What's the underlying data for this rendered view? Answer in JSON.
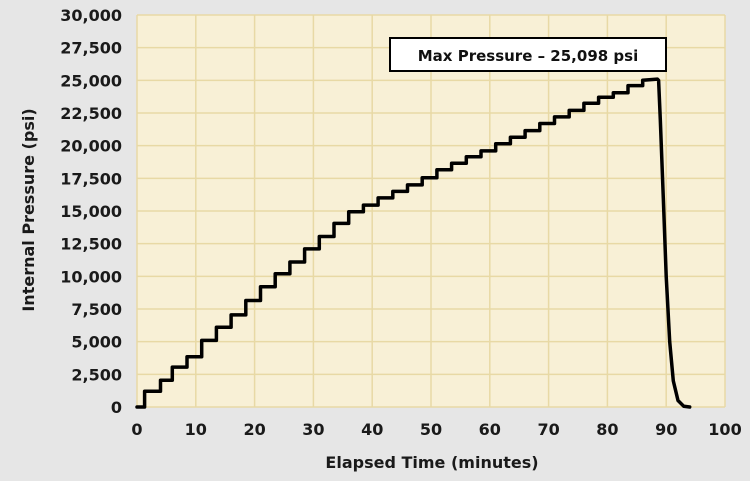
{
  "chart_data": {
    "type": "line",
    "title": "",
    "xlabel": "Elapsed Time (minutes)",
    "ylabel": "Internal Pressure (psi)",
    "xlim": [
      0,
      100
    ],
    "ylim": [
      0,
      30000
    ],
    "grid": true,
    "x_ticks": [
      0,
      10,
      20,
      30,
      40,
      50,
      60,
      70,
      80,
      90,
      100
    ],
    "x_tick_labels": [
      "0",
      "10",
      "20",
      "30",
      "40",
      "50",
      "60",
      "70",
      "80",
      "90",
      "100"
    ],
    "y_ticks": [
      0,
      2500,
      5000,
      7500,
      10000,
      12500,
      15000,
      17500,
      20000,
      22500,
      25000,
      27500,
      30000
    ],
    "y_tick_labels": [
      "0",
      "2,500",
      "5,000",
      "7,500",
      "10,000",
      "12,500",
      "15,000",
      "17,500",
      "20,000",
      "22,500",
      "25,000",
      "27,500",
      "30,000"
    ],
    "annotation": "Max Pressure – 25,098 psi",
    "colors": {
      "plot_bg": "#f8f0d6",
      "page_bg": "#e6e6e6",
      "grid": "#e8d9a5",
      "line": "#000000"
    },
    "series": [
      {
        "x": [
          0,
          1.3,
          1.3,
          4,
          4,
          6,
          6,
          8.5,
          8.5,
          11,
          11,
          13.5,
          13.5,
          16,
          16,
          18.5,
          18.5,
          21,
          21,
          23.5,
          23.5,
          26,
          26,
          28.5,
          28.5,
          31,
          31,
          33.5,
          33.5,
          36,
          36,
          38.5,
          38.5,
          41,
          41,
          43.5,
          43.5,
          46,
          46,
          48.5,
          48.5,
          51,
          51,
          53.5,
          53.5,
          56,
          56,
          58.5,
          58.5,
          61,
          61,
          63.5,
          63.5,
          66,
          66,
          68.5,
          68.5,
          71,
          71,
          73.5,
          73.5,
          76,
          76,
          78.5,
          78.5,
          81,
          81,
          83.5,
          83.5,
          86,
          86,
          88.5,
          88.7,
          89,
          89.5,
          90,
          90.6,
          91.2,
          92,
          93,
          94
        ],
        "y": [
          0,
          0,
          1200,
          1200,
          2050,
          2050,
          3050,
          3050,
          3850,
          3850,
          5100,
          5100,
          6100,
          6100,
          7050,
          7050,
          8150,
          8150,
          9200,
          9200,
          10200,
          10200,
          11100,
          11100,
          12100,
          12100,
          13050,
          13050,
          14050,
          14050,
          14950,
          14950,
          15450,
          15450,
          16000,
          16000,
          16500,
          16500,
          17000,
          17000,
          17550,
          17550,
          18150,
          18150,
          18650,
          18650,
          19150,
          19150,
          19600,
          19600,
          20150,
          20150,
          20650,
          20650,
          21150,
          21150,
          21700,
          21700,
          22200,
          22200,
          22700,
          22700,
          23250,
          23250,
          23700,
          23700,
          24050,
          24050,
          24600,
          24600,
          25000,
          25098,
          25000,
          22000,
          16000,
          10000,
          5000,
          2000,
          500,
          50,
          0
        ]
      }
    ]
  }
}
